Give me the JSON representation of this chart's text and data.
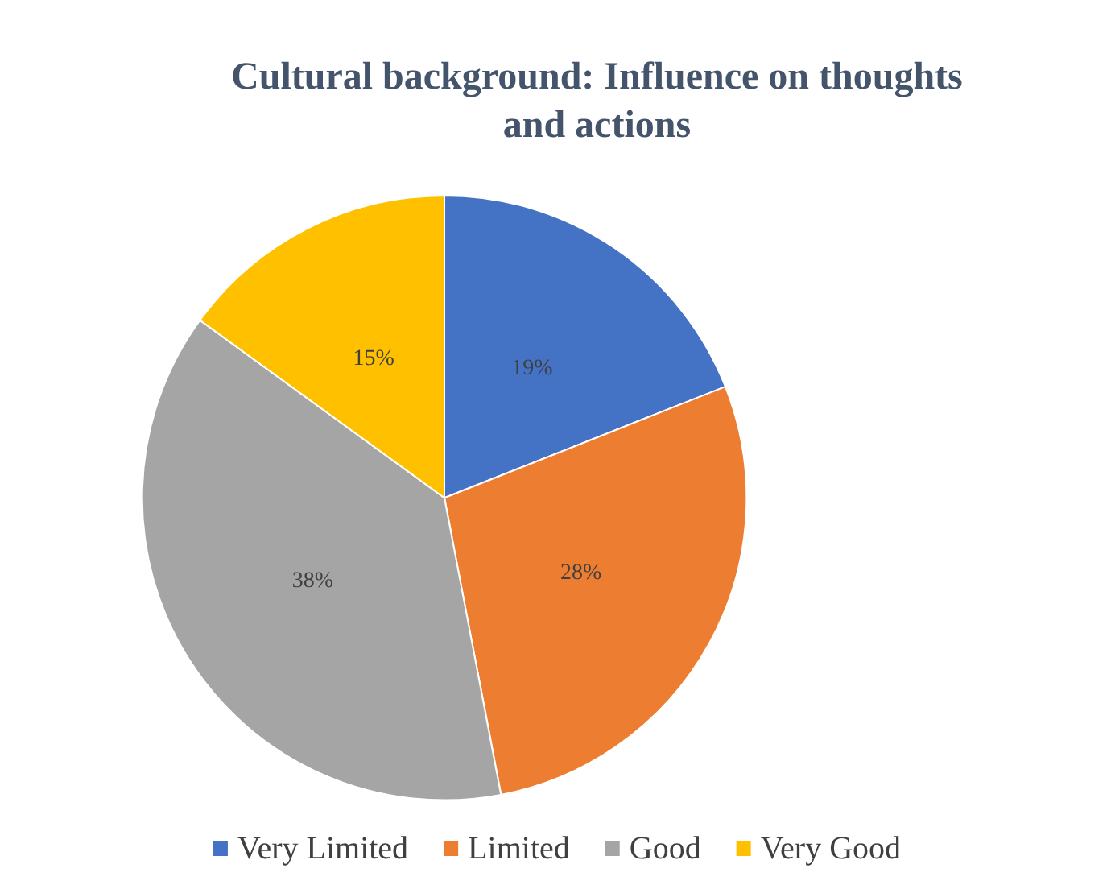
{
  "chart_data": {
    "type": "pie",
    "title": "Cultural background: Influence on thoughts\nand actions",
    "categories": [
      "Very Limited",
      "Limited",
      "Good",
      "Very Good"
    ],
    "values": [
      19,
      28,
      38,
      15
    ],
    "value_labels": [
      "19%",
      "28%",
      "38%",
      "15%"
    ],
    "colors": [
      "#4472c4",
      "#ed7d31",
      "#a5a5a5",
      "#ffc000"
    ],
    "legend": "bottom"
  }
}
